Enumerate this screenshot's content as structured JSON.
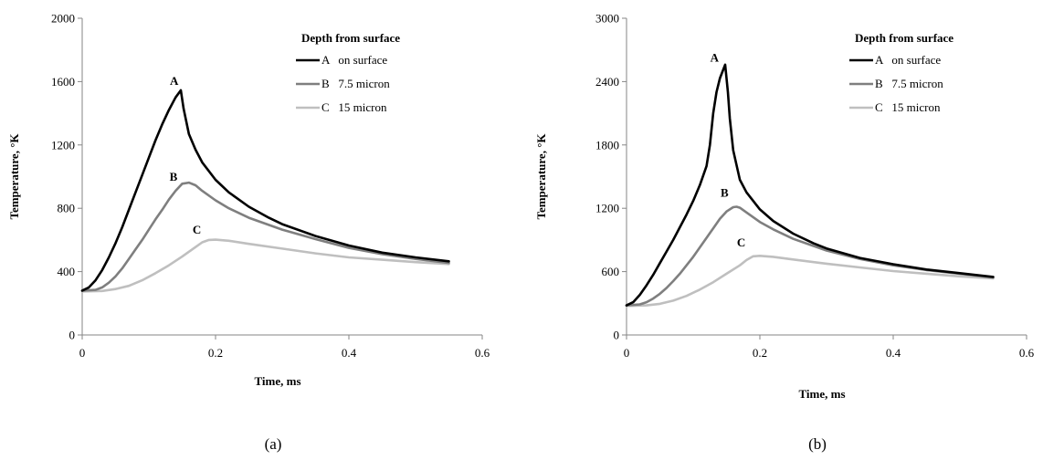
{
  "chart_data": [
    {
      "type": "line",
      "caption": "(a)",
      "title": "",
      "xlabel": "Time, ms",
      "ylabel": "Temperature, °K",
      "xlim": [
        0,
        0.6
      ],
      "ylim": [
        0,
        2000
      ],
      "xticks": [
        0,
        0.2,
        0.4,
        0.6
      ],
      "xtick_labels": [
        "0",
        "0.2",
        "0.4",
        "0.6"
      ],
      "yticks": [
        0,
        400,
        800,
        1200,
        1600,
        2000
      ],
      "ytick_labels": [
        "0",
        "400",
        "800",
        "1200",
        "1600",
        "2000"
      ],
      "grid": false,
      "legend_title": "Depth from surface",
      "legend_position": "top-right",
      "series": [
        {
          "name": "A   on surface",
          "label": "A",
          "label_at": [
            0.138,
            1580
          ],
          "color": "#000000",
          "points": [
            [
              0,
              280
            ],
            [
              0.01,
              300
            ],
            [
              0.02,
              345
            ],
            [
              0.03,
              410
            ],
            [
              0.04,
              490
            ],
            [
              0.05,
              580
            ],
            [
              0.06,
              680
            ],
            [
              0.07,
              790
            ],
            [
              0.08,
              900
            ],
            [
              0.09,
              1010
            ],
            [
              0.1,
              1120
            ],
            [
              0.11,
              1230
            ],
            [
              0.12,
              1330
            ],
            [
              0.13,
              1420
            ],
            [
              0.14,
              1500
            ],
            [
              0.148,
              1545
            ],
            [
              0.152,
              1430
            ],
            [
              0.16,
              1270
            ],
            [
              0.17,
              1170
            ],
            [
              0.18,
              1090
            ],
            [
              0.2,
              980
            ],
            [
              0.22,
              900
            ],
            [
              0.25,
              810
            ],
            [
              0.28,
              740
            ],
            [
              0.3,
              700
            ],
            [
              0.35,
              625
            ],
            [
              0.4,
              565
            ],
            [
              0.45,
              520
            ],
            [
              0.5,
              490
            ],
            [
              0.55,
              465
            ]
          ]
        },
        {
          "name": "B   7.5 micron",
          "label": "B",
          "label_at": [
            0.137,
            975
          ],
          "color": "#7f7f7f",
          "points": [
            [
              0,
              280
            ],
            [
              0.02,
              285
            ],
            [
              0.03,
              300
            ],
            [
              0.04,
              330
            ],
            [
              0.05,
              370
            ],
            [
              0.06,
              420
            ],
            [
              0.07,
              480
            ],
            [
              0.08,
              540
            ],
            [
              0.09,
              600
            ],
            [
              0.1,
              665
            ],
            [
              0.11,
              730
            ],
            [
              0.12,
              790
            ],
            [
              0.13,
              855
            ],
            [
              0.14,
              910
            ],
            [
              0.15,
              955
            ],
            [
              0.16,
              962
            ],
            [
              0.17,
              945
            ],
            [
              0.18,
              910
            ],
            [
              0.2,
              850
            ],
            [
              0.22,
              800
            ],
            [
              0.25,
              740
            ],
            [
              0.3,
              665
            ],
            [
              0.35,
              605
            ],
            [
              0.4,
              550
            ],
            [
              0.45,
              510
            ],
            [
              0.5,
              480
            ],
            [
              0.55,
              455
            ]
          ]
        },
        {
          "name": "C   15 micron",
          "label": "C",
          "label_at": [
            0.172,
            640
          ],
          "color": "#bfbfbf",
          "points": [
            [
              0,
              275
            ],
            [
              0.03,
              278
            ],
            [
              0.05,
              290
            ],
            [
              0.07,
              310
            ],
            [
              0.09,
              345
            ],
            [
              0.11,
              390
            ],
            [
              0.13,
              440
            ],
            [
              0.15,
              495
            ],
            [
              0.17,
              555
            ],
            [
              0.18,
              585
            ],
            [
              0.19,
              600
            ],
            [
              0.2,
              602
            ],
            [
              0.22,
              595
            ],
            [
              0.25,
              575
            ],
            [
              0.3,
              545
            ],
            [
              0.35,
              515
            ],
            [
              0.4,
              490
            ],
            [
              0.45,
              475
            ],
            [
              0.5,
              460
            ],
            [
              0.55,
              448
            ]
          ]
        }
      ]
    },
    {
      "type": "line",
      "caption": "(b)",
      "title": "",
      "xlabel": "Time, ms",
      "ylabel": "Temperature, °K",
      "xlim": [
        0,
        0.6
      ],
      "ylim": [
        0,
        3000
      ],
      "xticks": [
        0,
        0.2,
        0.4,
        0.6
      ],
      "xtick_labels": [
        "0",
        "0.2",
        "0.4",
        "0.6"
      ],
      "yticks": [
        0,
        600,
        1200,
        1800,
        2400,
        3000
      ],
      "ytick_labels": [
        "0",
        "600",
        "1200",
        "1800",
        "2400",
        "3000"
      ],
      "grid": false,
      "legend_title": "Depth from surface",
      "legend_position": "top-right",
      "series": [
        {
          "name": "A   on surface",
          "label": "A",
          "label_at": [
            0.132,
            2590
          ],
          "color": "#000000",
          "points": [
            [
              0,
              280
            ],
            [
              0.01,
              310
            ],
            [
              0.02,
              380
            ],
            [
              0.03,
              470
            ],
            [
              0.04,
              570
            ],
            [
              0.05,
              680
            ],
            [
              0.06,
              790
            ],
            [
              0.07,
              900
            ],
            [
              0.08,
              1020
            ],
            [
              0.09,
              1140
            ],
            [
              0.1,
              1270
            ],
            [
              0.11,
              1420
            ],
            [
              0.12,
              1600
            ],
            [
              0.125,
              1800
            ],
            [
              0.13,
              2100
            ],
            [
              0.135,
              2300
            ],
            [
              0.14,
              2430
            ],
            [
              0.148,
              2560
            ],
            [
              0.152,
              2300
            ],
            [
              0.155,
              2050
            ],
            [
              0.16,
              1750
            ],
            [
              0.17,
              1470
            ],
            [
              0.18,
              1350
            ],
            [
              0.2,
              1190
            ],
            [
              0.22,
              1080
            ],
            [
              0.25,
              960
            ],
            [
              0.28,
              870
            ],
            [
              0.3,
              820
            ],
            [
              0.35,
              730
            ],
            [
              0.4,
              670
            ],
            [
              0.45,
              620
            ],
            [
              0.5,
              585
            ],
            [
              0.55,
              550
            ]
          ]
        },
        {
          "name": "B   7.5 micron",
          "label": "B",
          "label_at": [
            0.147,
            1310
          ],
          "color": "#7f7f7f",
          "points": [
            [
              0,
              280
            ],
            [
              0.02,
              290
            ],
            [
              0.03,
              310
            ],
            [
              0.04,
              345
            ],
            [
              0.05,
              390
            ],
            [
              0.06,
              445
            ],
            [
              0.07,
              510
            ],
            [
              0.08,
              580
            ],
            [
              0.09,
              660
            ],
            [
              0.1,
              740
            ],
            [
              0.11,
              830
            ],
            [
              0.12,
              920
            ],
            [
              0.13,
              1010
            ],
            [
              0.14,
              1100
            ],
            [
              0.15,
              1170
            ],
            [
              0.16,
              1210
            ],
            [
              0.165,
              1215
            ],
            [
              0.17,
              1205
            ],
            [
              0.18,
              1160
            ],
            [
              0.2,
              1070
            ],
            [
              0.22,
              1000
            ],
            [
              0.25,
              910
            ],
            [
              0.3,
              800
            ],
            [
              0.35,
              720
            ],
            [
              0.4,
              660
            ],
            [
              0.45,
              615
            ],
            [
              0.5,
              580
            ],
            [
              0.55,
              545
            ]
          ]
        },
        {
          "name": "C   15 micron",
          "label": "C",
          "label_at": [
            0.172,
            840
          ],
          "color": "#bfbfbf",
          "points": [
            [
              0,
              275
            ],
            [
              0.03,
              280
            ],
            [
              0.05,
              295
            ],
            [
              0.07,
              325
            ],
            [
              0.09,
              370
            ],
            [
              0.11,
              430
            ],
            [
              0.13,
              500
            ],
            [
              0.15,
              580
            ],
            [
              0.17,
              660
            ],
            [
              0.18,
              710
            ],
            [
              0.19,
              745
            ],
            [
              0.2,
              750
            ],
            [
              0.22,
              740
            ],
            [
              0.25,
              715
            ],
            [
              0.3,
              675
            ],
            [
              0.35,
              640
            ],
            [
              0.4,
              605
            ],
            [
              0.45,
              580
            ],
            [
              0.5,
              555
            ],
            [
              0.55,
              535
            ]
          ]
        }
      ]
    }
  ]
}
